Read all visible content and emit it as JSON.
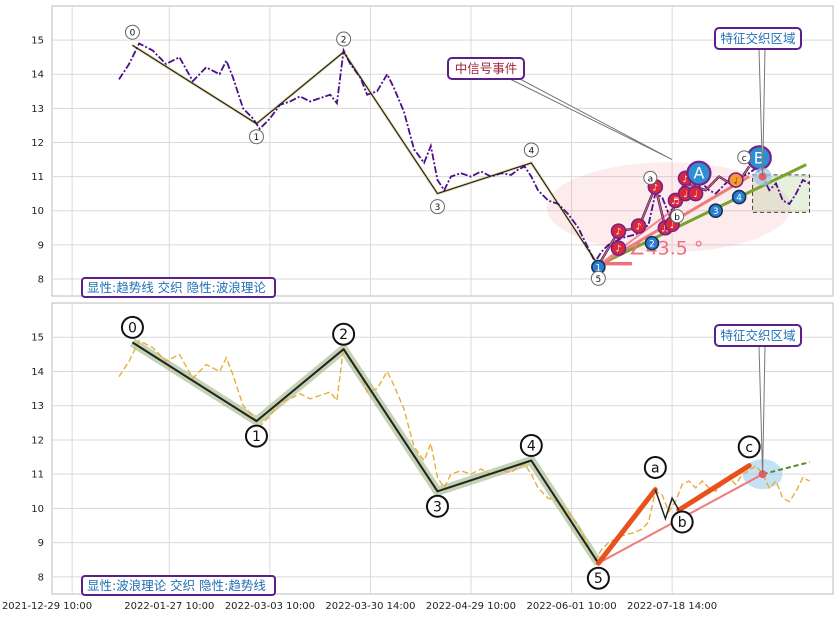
{
  "chart_data": [
    {
      "type": "line",
      "panel": "top",
      "legend_label": "显性:趋势线 交织 隐性:波浪理论",
      "ylim": [
        7.5,
        16.0
      ],
      "yticks": [
        8,
        9,
        10,
        11,
        12,
        13,
        14,
        15
      ],
      "price": [
        [
          0,
          13.85
        ],
        [
          3,
          14.3
        ],
        [
          6,
          14.9
        ],
        [
          10,
          14.7
        ],
        [
          14,
          14.3
        ],
        [
          18,
          14.5
        ],
        [
          22,
          13.8
        ],
        [
          26,
          14.2
        ],
        [
          30,
          14.0
        ],
        [
          32,
          14.4
        ],
        [
          34,
          13.9
        ],
        [
          37,
          13.0
        ],
        [
          40,
          12.7
        ],
        [
          42,
          12.4
        ],
        [
          45,
          12.7
        ],
        [
          48,
          13.1
        ],
        [
          51,
          13.2
        ],
        [
          54,
          13.35
        ],
        [
          57,
          13.2
        ],
        [
          60,
          13.3
        ],
        [
          63,
          13.4
        ],
        [
          65,
          13.15
        ],
        [
          67,
          14.7
        ],
        [
          69,
          14.3
        ],
        [
          72,
          13.9
        ],
        [
          74,
          13.4
        ],
        [
          77,
          13.5
        ],
        [
          80,
          14.0
        ],
        [
          82,
          13.6
        ],
        [
          85,
          12.9
        ],
        [
          88,
          11.8
        ],
        [
          91,
          11.4
        ],
        [
          93,
          11.9
        ],
        [
          95,
          10.9
        ],
        [
          97,
          10.6
        ],
        [
          99,
          11.0
        ],
        [
          102,
          11.1
        ],
        [
          105,
          11.0
        ],
        [
          108,
          11.15
        ],
        [
          111,
          11.0
        ],
        [
          114,
          11.1
        ],
        [
          117,
          11.05
        ],
        [
          119,
          11.2
        ],
        [
          121,
          11.3
        ],
        [
          123,
          11.0
        ],
        [
          125,
          10.6
        ],
        [
          128,
          10.3
        ],
        [
          131,
          10.2
        ],
        [
          134,
          9.9
        ],
        [
          137,
          9.5
        ],
        [
          140,
          8.9
        ],
        [
          142,
          8.5
        ],
        [
          144,
          8.8
        ],
        [
          146,
          9.0
        ],
        [
          148,
          9.1
        ],
        [
          150,
          9.2
        ],
        [
          152,
          9.25
        ],
        [
          154,
          9.3
        ],
        [
          156,
          9.4
        ],
        [
          158,
          9.6
        ],
        [
          160,
          10.5
        ],
        [
          162,
          10.4
        ],
        [
          164,
          9.9
        ],
        [
          166,
          10.2
        ],
        [
          168,
          10.7
        ],
        [
          170,
          10.8
        ],
        [
          172,
          10.6
        ],
        [
          174,
          10.8
        ],
        [
          176,
          10.6
        ],
        [
          178,
          10.5
        ],
        [
          180,
          10.7
        ],
        [
          182,
          10.9
        ],
        [
          184,
          10.7
        ],
        [
          186,
          11.0
        ],
        [
          188,
          11.1
        ],
        [
          190,
          11.25
        ],
        [
          192,
          11.0
        ],
        [
          194,
          10.6
        ],
        [
          196,
          10.8
        ],
        [
          198,
          10.3
        ],
        [
          200,
          10.2
        ],
        [
          202,
          10.5
        ],
        [
          204,
          10.9
        ],
        [
          206,
          10.8
        ]
      ],
      "wave_points": [
        {
          "x": 4,
          "y": 14.85,
          "label": "0"
        },
        {
          "x": 41,
          "y": 12.55,
          "label": "1"
        },
        {
          "x": 67,
          "y": 14.65,
          "label": "2"
        },
        {
          "x": 95,
          "y": 10.5,
          "label": "3"
        },
        {
          "x": 123,
          "y": 11.4,
          "label": "4"
        },
        {
          "x": 143,
          "y": 8.4,
          "label": "5"
        }
      ],
      "sub_points": [
        {
          "x": 160,
          "y": 10.7,
          "label": "a"
        },
        {
          "x": 168,
          "y": 10.1,
          "label": "b"
        },
        {
          "x": 188,
          "y": 11.3,
          "label": "c"
        }
      ],
      "trend_fan": [
        {
          "from": [
            143,
            8.4
          ],
          "to": [
            205,
            11.35
          ],
          "color": "#7aa22f",
          "width": 3
        },
        {
          "from": [
            143,
            8.4
          ],
          "to": [
            188,
            11.0
          ],
          "color": "#ef7b7b",
          "width": 3
        },
        {
          "from": [
            143,
            8.4
          ],
          "to": [
            165,
            10.0
          ],
          "color": "#f08a8a",
          "width": 2
        }
      ],
      "signal_zigzag": [
        [
          143,
          8.4
        ],
        [
          149,
          9.4
        ],
        [
          155,
          9.5
        ],
        [
          160,
          10.7
        ],
        [
          163,
          9.5
        ],
        [
          166,
          10.2
        ],
        [
          169,
          10.8
        ],
        [
          175,
          10.6
        ],
        [
          179,
          11.0
        ],
        [
          184,
          10.7
        ],
        [
          188,
          11.3
        ]
      ],
      "signal_markers": [
        {
          "x": 143,
          "y": 8.35,
          "label": "1",
          "kind": "blue"
        },
        {
          "x": 149,
          "y": 8.9,
          "label": "♪",
          "kind": "red"
        },
        {
          "x": 149,
          "y": 9.4,
          "label": "♪",
          "kind": "red"
        },
        {
          "x": 155,
          "y": 9.55,
          "label": "♪",
          "kind": "red"
        },
        {
          "x": 159,
          "y": 9.05,
          "label": "2",
          "kind": "blue"
        },
        {
          "x": 160,
          "y": 10.7,
          "label": "♪",
          "kind": "red"
        },
        {
          "x": 163,
          "y": 9.5,
          "label": "♬",
          "kind": "red"
        },
        {
          "x": 165,
          "y": 9.6,
          "label": "♩",
          "kind": "red"
        },
        {
          "x": 166,
          "y": 10.3,
          "label": "♬",
          "kind": "red"
        },
        {
          "x": 169,
          "y": 10.5,
          "label": "♩",
          "kind": "red"
        },
        {
          "x": 169,
          "y": 10.95,
          "label": "♪",
          "kind": "red"
        },
        {
          "x": 172,
          "y": 10.5,
          "label": "♩",
          "kind": "red"
        },
        {
          "x": 178,
          "y": 10.0,
          "label": "3",
          "kind": "blue"
        },
        {
          "x": 184,
          "y": 10.9,
          "label": "♩",
          "kind": "orange"
        },
        {
          "x": 185,
          "y": 10.4,
          "label": "4",
          "kind": "blue"
        }
      ],
      "big_markers": [
        {
          "x": 173,
          "y": 11.1,
          "label": "A"
        },
        {
          "x": 191,
          "y": 11.55,
          "label": "B"
        }
      ],
      "angle_label": "∠43.5 °",
      "callouts": [
        {
          "text": "中信号事件",
          "color": "#a0203a"
        },
        {
          "text": "特征交织区域",
          "color": "#1f6fb4"
        }
      ]
    },
    {
      "type": "line",
      "panel": "bottom",
      "legend_label": "显性:波浪理论 交织 隐性:趋势线",
      "ylim": [
        7.5,
        16.0
      ],
      "yticks": [
        8,
        9,
        10,
        11,
        12,
        13,
        14,
        15
      ],
      "price": [
        [
          0,
          13.85
        ],
        [
          3,
          14.3
        ],
        [
          6,
          14.9
        ],
        [
          10,
          14.7
        ],
        [
          14,
          14.3
        ],
        [
          18,
          14.5
        ],
        [
          22,
          13.8
        ],
        [
          26,
          14.2
        ],
        [
          30,
          14.0
        ],
        [
          32,
          14.4
        ],
        [
          34,
          13.9
        ],
        [
          37,
          13.0
        ],
        [
          40,
          12.7
        ],
        [
          42,
          12.4
        ],
        [
          45,
          12.7
        ],
        [
          48,
          13.1
        ],
        [
          51,
          13.2
        ],
        [
          54,
          13.35
        ],
        [
          57,
          13.2
        ],
        [
          60,
          13.3
        ],
        [
          63,
          13.4
        ],
        [
          65,
          13.15
        ],
        [
          67,
          14.7
        ],
        [
          69,
          14.3
        ],
        [
          72,
          13.9
        ],
        [
          74,
          13.4
        ],
        [
          77,
          13.5
        ],
        [
          80,
          14.0
        ],
        [
          82,
          13.6
        ],
        [
          85,
          12.9
        ],
        [
          88,
          11.8
        ],
        [
          91,
          11.4
        ],
        [
          93,
          11.9
        ],
        [
          95,
          10.9
        ],
        [
          97,
          10.6
        ],
        [
          99,
          11.0
        ],
        [
          102,
          11.1
        ],
        [
          105,
          11.0
        ],
        [
          108,
          11.15
        ],
        [
          111,
          11.0
        ],
        [
          114,
          11.1
        ],
        [
          117,
          11.05
        ],
        [
          119,
          11.2
        ],
        [
          121,
          11.3
        ],
        [
          123,
          11.0
        ],
        [
          125,
          10.6
        ],
        [
          128,
          10.3
        ],
        [
          131,
          10.2
        ],
        [
          134,
          9.9
        ],
        [
          137,
          9.5
        ],
        [
          140,
          8.9
        ],
        [
          142,
          8.5
        ],
        [
          144,
          8.8
        ],
        [
          146,
          9.0
        ],
        [
          148,
          9.1
        ],
        [
          150,
          9.2
        ],
        [
          152,
          9.25
        ],
        [
          154,
          9.3
        ],
        [
          156,
          9.4
        ],
        [
          158,
          9.6
        ],
        [
          160,
          10.5
        ],
        [
          162,
          10.4
        ],
        [
          164,
          9.9
        ],
        [
          166,
          10.2
        ],
        [
          168,
          10.7
        ],
        [
          170,
          10.8
        ],
        [
          172,
          10.6
        ],
        [
          174,
          10.8
        ],
        [
          176,
          10.6
        ],
        [
          178,
          10.5
        ],
        [
          180,
          10.7
        ],
        [
          182,
          10.9
        ],
        [
          184,
          10.7
        ],
        [
          186,
          11.0
        ],
        [
          188,
          11.1
        ],
        [
          190,
          11.25
        ],
        [
          192,
          11.0
        ],
        [
          194,
          10.6
        ],
        [
          196,
          10.8
        ],
        [
          198,
          10.3
        ],
        [
          200,
          10.2
        ],
        [
          202,
          10.5
        ],
        [
          204,
          10.9
        ],
        [
          206,
          10.8
        ]
      ],
      "wave_points": [
        {
          "x": 4,
          "y": 14.85,
          "label": "0"
        },
        {
          "x": 41,
          "y": 12.55,
          "label": "1"
        },
        {
          "x": 67,
          "y": 14.65,
          "label": "2"
        },
        {
          "x": 95,
          "y": 10.5,
          "label": "3"
        },
        {
          "x": 123,
          "y": 11.4,
          "label": "4"
        },
        {
          "x": 143,
          "y": 8.4,
          "label": "5"
        }
      ],
      "sub_points": [
        {
          "x": 160,
          "y": 10.7,
          "label": "a"
        },
        {
          "x": 168,
          "y": 10.1,
          "label": "b"
        },
        {
          "x": 188,
          "y": 11.3,
          "label": "c"
        }
      ],
      "trend_fan": [
        {
          "from": [
            143,
            8.4
          ],
          "to": [
            192,
            11.0
          ],
          "color": "#ef7b7b",
          "width": 2
        },
        {
          "from": [
            192,
            11.0
          ],
          "to": [
            206,
            11.35
          ],
          "color": "#5b8a2a",
          "width": 2,
          "dash": true
        }
      ],
      "callouts": [
        {
          "text": "特征交织区域",
          "color": "#1f6fb4"
        }
      ]
    }
  ],
  "x_axis": {
    "ticks": [
      {
        "x": -14,
        "label": "2021-12-29 10:00"
      },
      {
        "x": 15,
        "label": "2022-01-27 10:00"
      },
      {
        "x": 45,
        "label": "2022-03-03 10:00"
      },
      {
        "x": 75,
        "label": "2022-03-30 14:00"
      },
      {
        "x": 105,
        "label": "2022-04-29 10:00"
      },
      {
        "x": 135,
        "label": "2022-06-01 10:00"
      },
      {
        "x": 165,
        "label": "2022-07-18 14:00"
      }
    ]
  }
}
